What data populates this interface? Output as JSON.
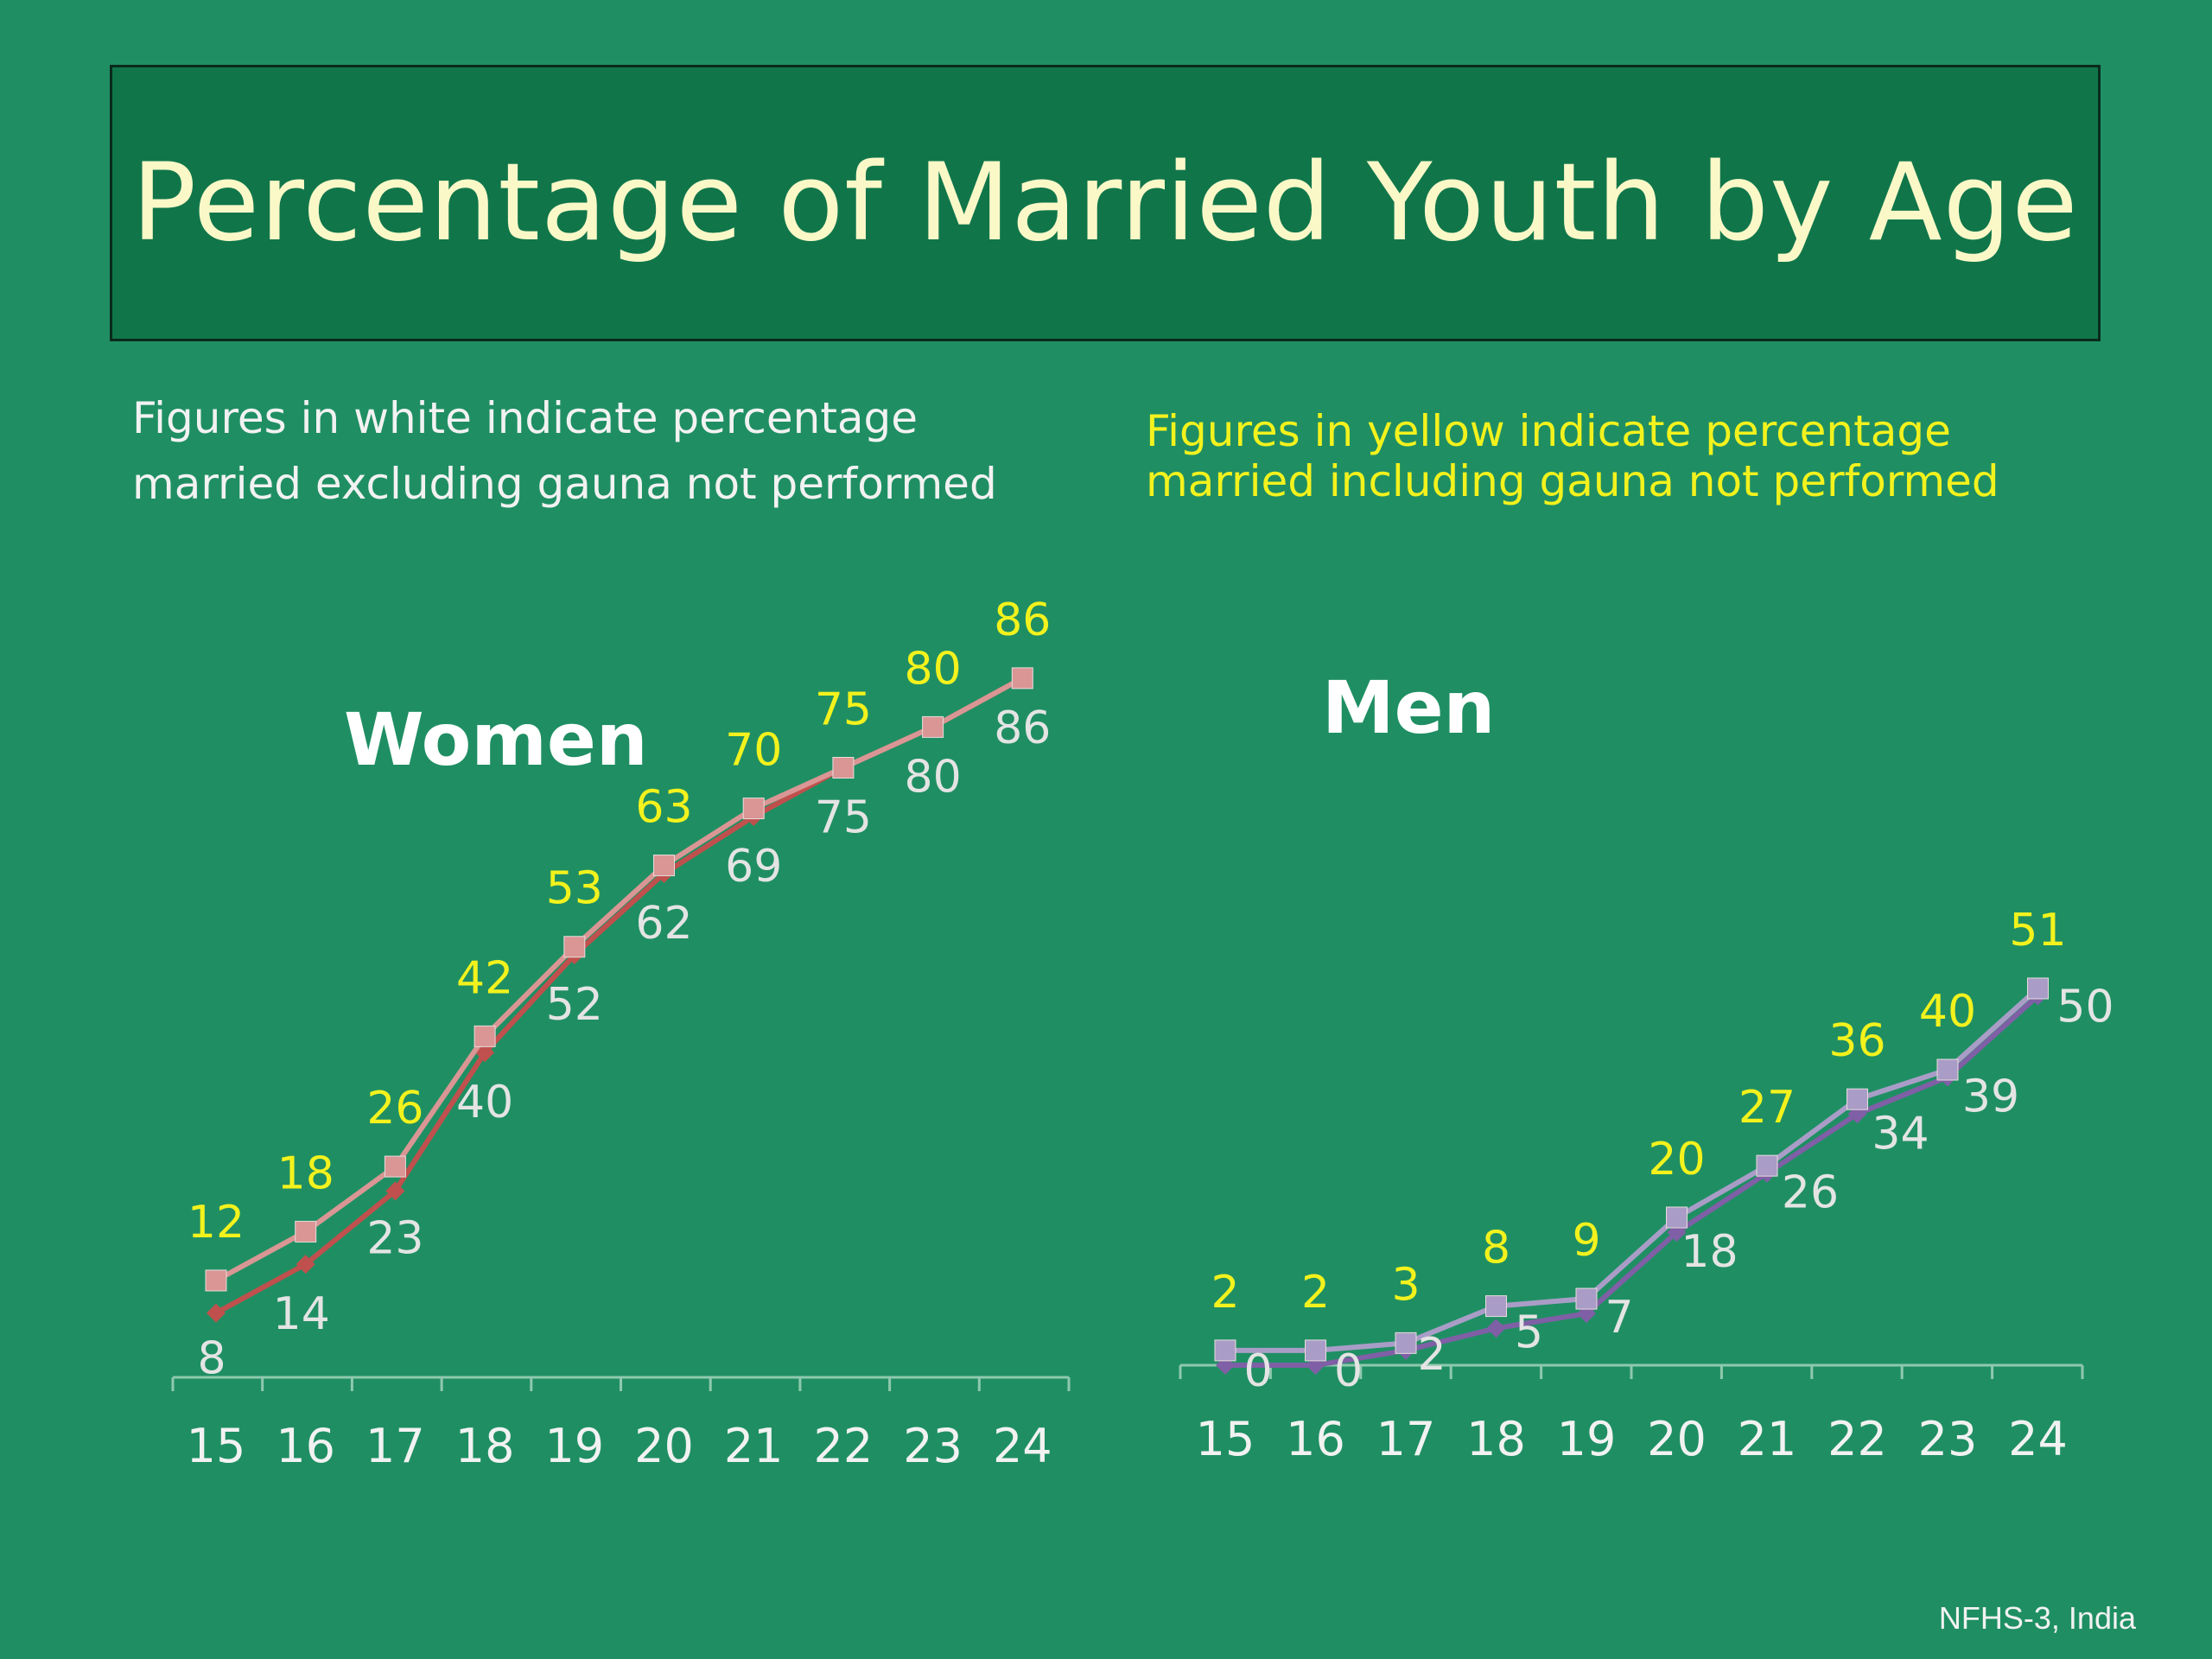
{
  "title": "Percentage of Married Youth by Age",
  "note_white": [
    "Figures in white indicate percentage",
    "married excluding gauna not performed"
  ],
  "note_yellow": [
    "Figures in yellow indicate percentage",
    "married including gauna not performed"
  ],
  "source": "NFHS-3, India",
  "colors": {
    "background": "#1f8f63",
    "title_box": "#10764a",
    "title_text": "#fbf8c8",
    "white_label": "#e4e4e4",
    "yellow_label": "#f3f21d",
    "women_excluding": "#c0504d",
    "women_including": "#d99694",
    "men_excluding": "#7f5fa5",
    "men_including": "#a99dc7"
  },
  "chart_data": [
    {
      "type": "line",
      "title": "Women",
      "x": [
        15,
        16,
        17,
        18,
        19,
        20,
        21,
        22,
        23,
        24
      ],
      "ylim": [
        0,
        100
      ],
      "series": [
        {
          "values": [
            8,
            14,
            23,
            40,
            52,
            62,
            69,
            75,
            80,
            86
          ],
          "label_color": "white",
          "marker": "diamond",
          "color": "#c0504d"
        },
        {
          "values": [
            12,
            18,
            26,
            42,
            53,
            63,
            70,
            75,
            80,
            86
          ],
          "label_color": "yellow",
          "marker": "square",
          "color": "#d99694"
        }
      ]
    },
    {
      "type": "line",
      "title": "Men",
      "x": [
        15,
        16,
        17,
        18,
        19,
        20,
        21,
        22,
        23,
        24
      ],
      "ylim": [
        0,
        100
      ],
      "series": [
        {
          "values": [
            0,
            0,
            2,
            5,
            7,
            18,
            26,
            34,
            39,
            50
          ],
          "label_color": "white",
          "marker": "diamond",
          "color": "#7f5fa5"
        },
        {
          "values": [
            2,
            2,
            3,
            8,
            9,
            20,
            27,
            36,
            40,
            51
          ],
          "label_color": "yellow",
          "marker": "square",
          "color": "#a99dc7"
        }
      ]
    }
  ]
}
